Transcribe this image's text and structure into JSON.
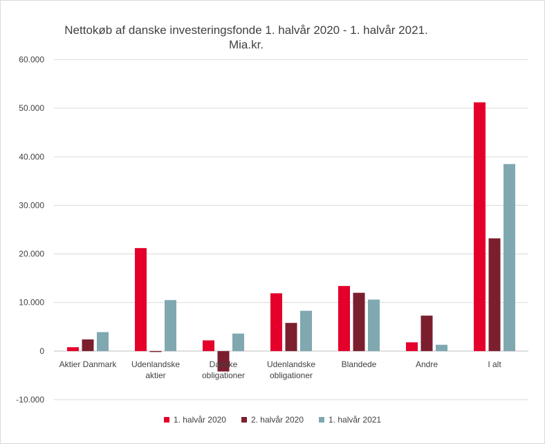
{
  "chart_data": {
    "type": "bar",
    "title_line1": "Nettokøb af danske investeringsfonde 1. halvår 2020 - 1. halvår 2021.",
    "title_line2": "Mia.kr.",
    "categories": [
      [
        "Aktier Danmark"
      ],
      [
        "Udenlandske",
        "aktier"
      ],
      [
        "Danske",
        "obligationer"
      ],
      [
        "Udenlandske",
        "obligationer"
      ],
      [
        "Blandede"
      ],
      [
        "Andre"
      ],
      [
        "I alt"
      ]
    ],
    "series": [
      {
        "name": "1. halvår 2020",
        "color": "#e4002b",
        "values": [
          800,
          21200,
          2200,
          11900,
          13400,
          1800,
          51200
        ]
      },
      {
        "name": "2. halvår 2020",
        "color": "#7b1f2e",
        "values": [
          2400,
          -200,
          -4200,
          5800,
          12000,
          7300,
          23200
        ]
      },
      {
        "name": "1. halvår 2021",
        "color": "#7fa8b1",
        "values": [
          3900,
          10500,
          3600,
          8300,
          10600,
          1300,
          38500
        ]
      }
    ],
    "ylim": [
      -10000,
      60000
    ],
    "yticks": [
      60000,
      50000,
      40000,
      30000,
      20000,
      10000,
      0,
      -10000
    ],
    "ytick_labels": [
      "60.000",
      "50.000",
      "40.000",
      "30.000",
      "20.000",
      "10.000",
      "0",
      "-10.000"
    ],
    "grid": true,
    "legend_position": "bottom"
  }
}
